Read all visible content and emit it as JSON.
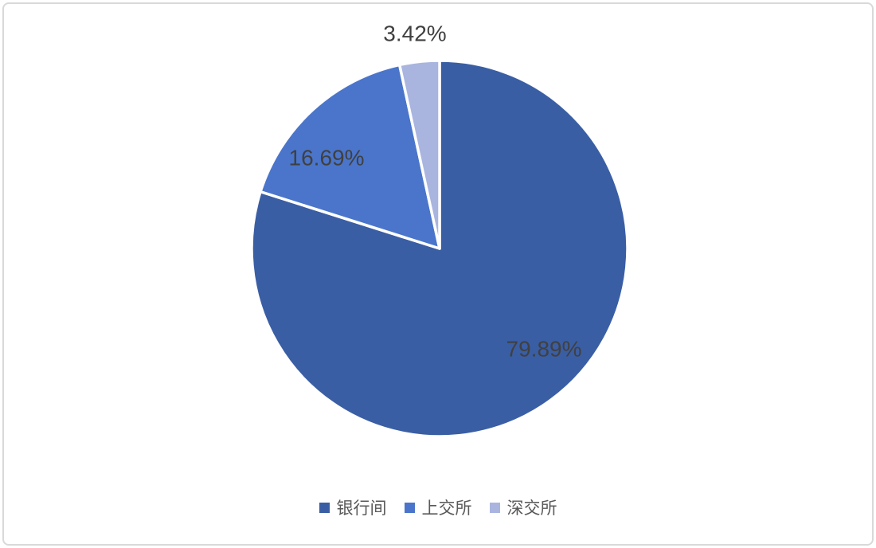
{
  "frame": {
    "border_color": "#d9d9d9",
    "background_color": "#ffffff"
  },
  "chart_data": {
    "type": "pie",
    "title": "",
    "categories": [
      "银行间",
      "上交所",
      "深交所"
    ],
    "values": [
      79.89,
      16.69,
      3.42
    ],
    "labels": [
      "79.89%",
      "16.69%",
      "3.42%"
    ],
    "colors": [
      "#3a5ea4",
      "#4a75ca",
      "#a9b5df"
    ],
    "start_angle_deg": 0,
    "direction": "clockwise",
    "slice_border_color": "#ffffff",
    "label_color": "#404040",
    "legend_position": "bottom",
    "legend": [
      {
        "label": "银行间",
        "color": "#3a5ea4"
      },
      {
        "label": "上交所",
        "color": "#4a75ca"
      },
      {
        "label": "深交所",
        "color": "#a9b5df"
      }
    ]
  }
}
